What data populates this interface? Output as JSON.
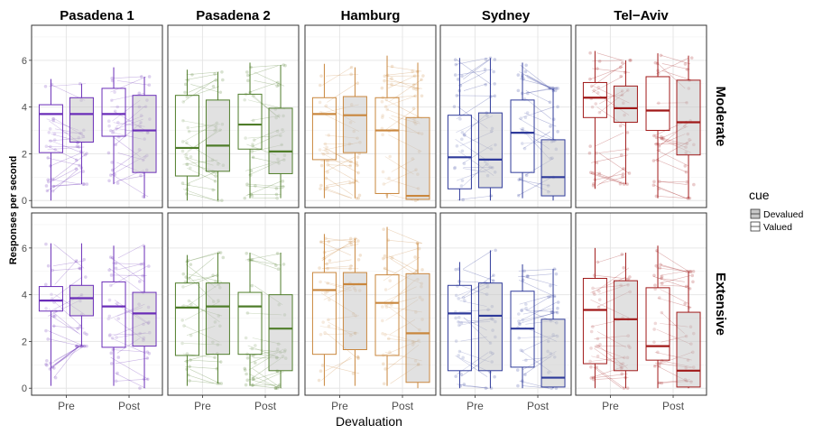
{
  "chart_data": {
    "type": "boxplot",
    "ylabel": "Responses per second",
    "xlabel": "Devaluation",
    "categories": [
      "Pre",
      "Post"
    ],
    "ylim": [
      -0.3,
      7.5
    ],
    "yticks": [
      0,
      2,
      4,
      6
    ],
    "grid": true,
    "legend": {
      "title": "cue",
      "placement": "right",
      "entries": [
        {
          "label": "Devalued",
          "fill": "#c8c8c8"
        },
        {
          "label": "Valued",
          "fill": "#ffffff"
        }
      ]
    },
    "facet_columns": [
      {
        "label": "Pasadena 1",
        "color": "#6a2db8"
      },
      {
        "label": "Pasadena 2",
        "color": "#4f7d2a"
      },
      {
        "label": "Hamburg",
        "color": "#c9873e"
      },
      {
        "label": "Sydney",
        "color": "#2e3a9a"
      },
      {
        "label": "Tel−Aviv",
        "color": "#a01818"
      }
    ],
    "facet_rows": [
      "Moderate",
      "Extensive"
    ],
    "panels": [
      [
        {
          "Pre": {
            "Valued": [
              0,
              2.05,
              3.7,
              4.1,
              5.2
            ],
            "Devalued": [
              0.7,
              2.5,
              3.7,
              4.4,
              5.0
            ]
          },
          "Post": {
            "Valued": [
              0.7,
              2.75,
              3.7,
              4.8,
              5.7
            ],
            "Devalued": [
              0.1,
              1.2,
              3.0,
              4.5,
              5.3
            ]
          }
        },
        {
          "Pre": {
            "Valued": [
              0,
              1.05,
              2.25,
              4.5,
              5.6
            ],
            "Devalued": [
              0,
              1.25,
              2.35,
              4.3,
              5.5
            ]
          },
          "Post": {
            "Valued": [
              0.1,
              2.2,
              3.25,
              4.55,
              5.9
            ],
            "Devalued": [
              0.1,
              1.15,
              2.1,
              3.95,
              5.8
            ]
          }
        },
        {
          "Pre": {
            "Valued": [
              0.1,
              1.75,
              3.7,
              4.4,
              5.85
            ],
            "Devalued": [
              0.1,
              2.05,
              3.65,
              4.45,
              5.7
            ]
          },
          "Post": {
            "Valued": [
              0.1,
              0.3,
              3.0,
              4.4,
              6.2
            ],
            "Devalued": [
              0,
              0.05,
              0.2,
              3.55,
              5.9
            ]
          }
        },
        {
          "Pre": {
            "Valued": [
              0,
              0.5,
              1.85,
              3.65,
              6.1
            ],
            "Devalued": [
              0,
              0.55,
              1.75,
              3.75,
              6.1
            ]
          },
          "Post": {
            "Valued": [
              0.1,
              1.2,
              2.9,
              4.3,
              5.9
            ],
            "Devalued": [
              0,
              0.2,
              1.0,
              2.6,
              4.8
            ]
          }
        },
        {
          "Pre": {
            "Valued": [
              0.5,
              3.55,
              4.4,
              5.05,
              6.4
            ],
            "Devalued": [
              0.7,
              3.35,
              3.95,
              4.9,
              6.0
            ]
          },
          "Post": {
            "Valued": [
              0.1,
              3.0,
              3.85,
              5.3,
              6.3
            ],
            "Devalued": [
              0.1,
              1.95,
              3.35,
              5.15,
              6.2
            ]
          }
        }
      ],
      [
        {
          "Pre": {
            "Valued": [
              0.1,
              3.3,
              3.75,
              4.35,
              6.2
            ],
            "Devalued": [
              1.8,
              3.1,
              3.85,
              4.4,
              6.2
            ]
          },
          "Post": {
            "Valued": [
              0.1,
              1.75,
              3.5,
              4.55,
              6.1
            ],
            "Devalued": [
              0,
              1.8,
              3.2,
              4.1,
              6.1
            ]
          }
        },
        {
          "Pre": {
            "Valued": [
              0.1,
              1.4,
              3.45,
              4.5,
              5.7
            ],
            "Devalued": [
              0.2,
              1.45,
              3.5,
              4.5,
              5.8
            ]
          },
          "Post": {
            "Valued": [
              0.1,
              1.45,
              3.5,
              4.1,
              5.8
            ],
            "Devalued": [
              0,
              0.75,
              2.55,
              4.0,
              5.8
            ]
          }
        },
        {
          "Pre": {
            "Valued": [
              0.1,
              1.45,
              4.2,
              4.95,
              6.6
            ],
            "Devalued": [
              0.1,
              1.65,
              4.45,
              4.95,
              6.4
            ]
          },
          "Post": {
            "Valued": [
              0.1,
              1.4,
              3.65,
              4.85,
              6.9
            ],
            "Devalued": [
              0,
              0.25,
              2.35,
              4.9,
              6.2
            ]
          }
        },
        {
          "Pre": {
            "Valued": [
              0,
              0.75,
              3.2,
              4.4,
              5.4
            ],
            "Devalued": [
              0,
              0.75,
              3.1,
              4.5,
              5.9
            ]
          },
          "Post": {
            "Valued": [
              0,
              0.9,
              2.55,
              4.15,
              5.3
            ],
            "Devalued": [
              0,
              0.05,
              0.45,
              2.95,
              5.1
            ]
          }
        },
        {
          "Pre": {
            "Valued": [
              0,
              1.05,
              3.35,
              4.7,
              6.0
            ],
            "Devalued": [
              0,
              0.75,
              2.95,
              4.6,
              5.8
            ]
          },
          "Post": {
            "Valued": [
              0,
              1.2,
              1.8,
              4.3,
              6.1
            ],
            "Devalued": [
              0,
              0.05,
              0.75,
              3.25,
              5.0
            ]
          }
        }
      ]
    ]
  }
}
